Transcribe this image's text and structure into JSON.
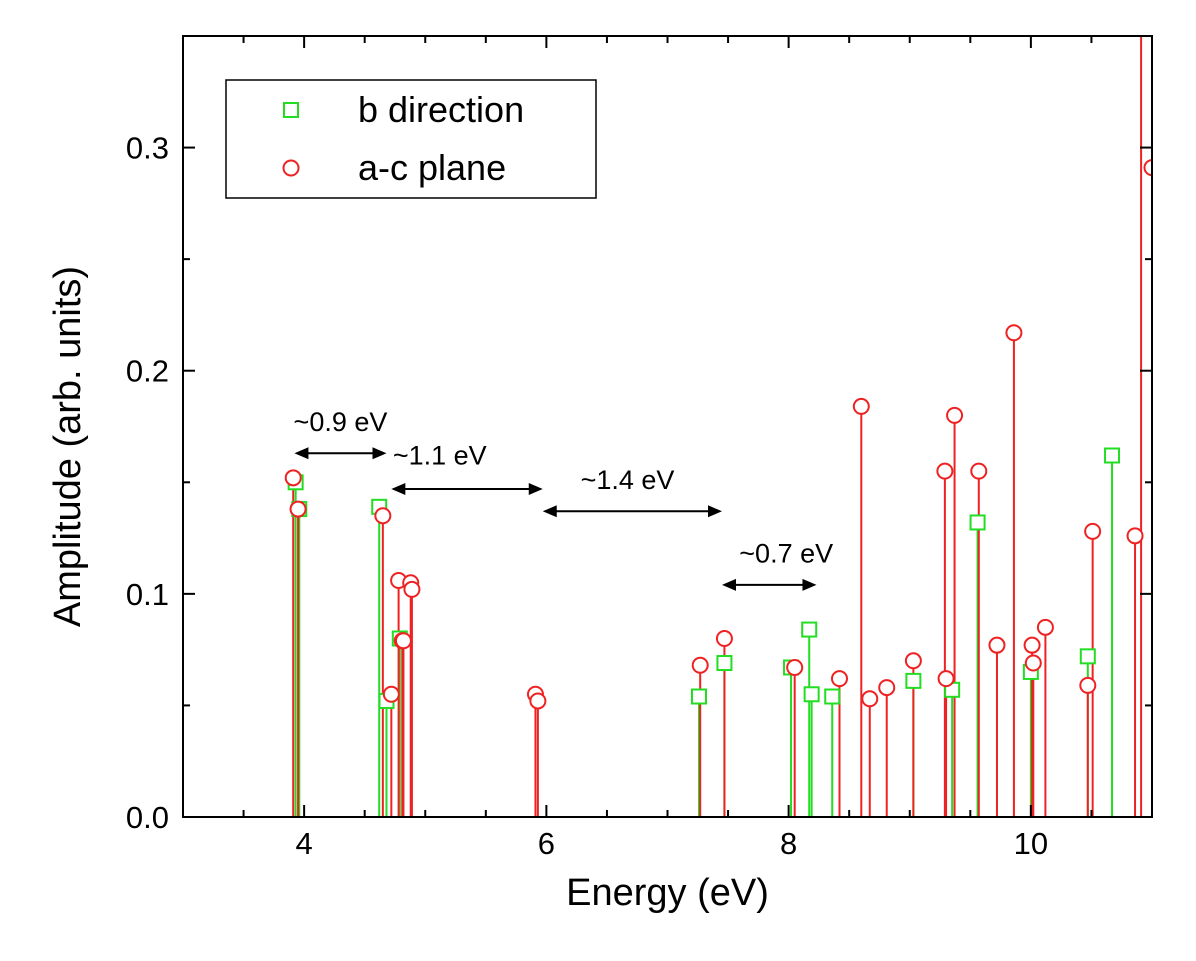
{
  "chart_data": {
    "type": "scatter",
    "title": "",
    "xlabel": "Energy (eV)",
    "ylabel": "Amplitude (arb. units)",
    "xlim": [
      3.0,
      11.0
    ],
    "ylim": [
      0.0,
      0.35
    ],
    "xticks": [
      4,
      6,
      8,
      10
    ],
    "xtick_labels": [
      "4",
      "6",
      "8",
      "10"
    ],
    "yticks": [
      0.0,
      0.1,
      0.2,
      0.3
    ],
    "ytick_labels": [
      "0.0",
      "0.1",
      "0.2",
      "0.3"
    ],
    "grid": false,
    "legend_position": "top-left",
    "colors": {
      "b_direction": "#22dd22",
      "ac_plane": "#ee2222",
      "axis": "#000000"
    },
    "series": [
      {
        "name": "b direction",
        "marker": "square",
        "color": "#22dd22",
        "x": [
          3.93,
          3.96,
          4.62,
          4.68,
          4.79,
          7.26,
          7.47,
          8.02,
          8.17,
          8.19,
          8.36,
          9.03,
          9.35,
          9.56,
          10.0,
          10.47,
          10.67
        ],
        "y": [
          0.15,
          0.138,
          0.139,
          0.052,
          0.08,
          0.054,
          0.069,
          0.067,
          0.084,
          0.055,
          0.054,
          0.061,
          0.057,
          0.132,
          0.065,
          0.072,
          0.162
        ]
      },
      {
        "name": "a-c plane",
        "marker": "circle",
        "color": "#ee2222",
        "x": [
          3.91,
          3.95,
          4.65,
          4.72,
          4.78,
          4.81,
          4.82,
          4.88,
          4.89,
          5.91,
          5.93,
          7.27,
          7.47,
          8.05,
          8.42,
          8.6,
          8.67,
          8.81,
          9.03,
          9.29,
          9.3,
          9.37,
          9.57,
          9.72,
          9.86,
          10.01,
          10.02,
          10.12,
          10.47,
          10.51,
          10.86,
          11.0
        ],
        "y": [
          0.152,
          0.138,
          0.135,
          0.055,
          0.106,
          0.079,
          0.079,
          0.105,
          0.102,
          0.055,
          0.052,
          0.068,
          0.08,
          0.067,
          0.062,
          0.184,
          0.053,
          0.058,
          0.07,
          0.155,
          0.062,
          0.18,
          0.155,
          0.077,
          0.217,
          0.077,
          0.069,
          0.085,
          0.059,
          0.128,
          0.126,
          0.291
        ]
      }
    ],
    "off_scale_stem": {
      "series": "a-c plane",
      "x": 10.91
    },
    "annotations": [
      {
        "text": "~0.9 eV",
        "x1": 3.92,
        "x2": 4.68,
        "y": 0.163,
        "label_x": 4.3,
        "label_y": 0.173
      },
      {
        "text": "~1.1 eV",
        "x1": 4.72,
        "x2": 5.97,
        "y": 0.147,
        "label_x": 5.12,
        "label_y": 0.158
      },
      {
        "text": "~1.4 eV",
        "x1": 5.97,
        "x2": 7.45,
        "y": 0.137,
        "label_x": 6.67,
        "label_y": 0.147
      },
      {
        "text": "~0.7 eV",
        "x1": 7.45,
        "x2": 8.23,
        "y": 0.104,
        "label_x": 7.98,
        "label_y": 0.114
      }
    ]
  }
}
